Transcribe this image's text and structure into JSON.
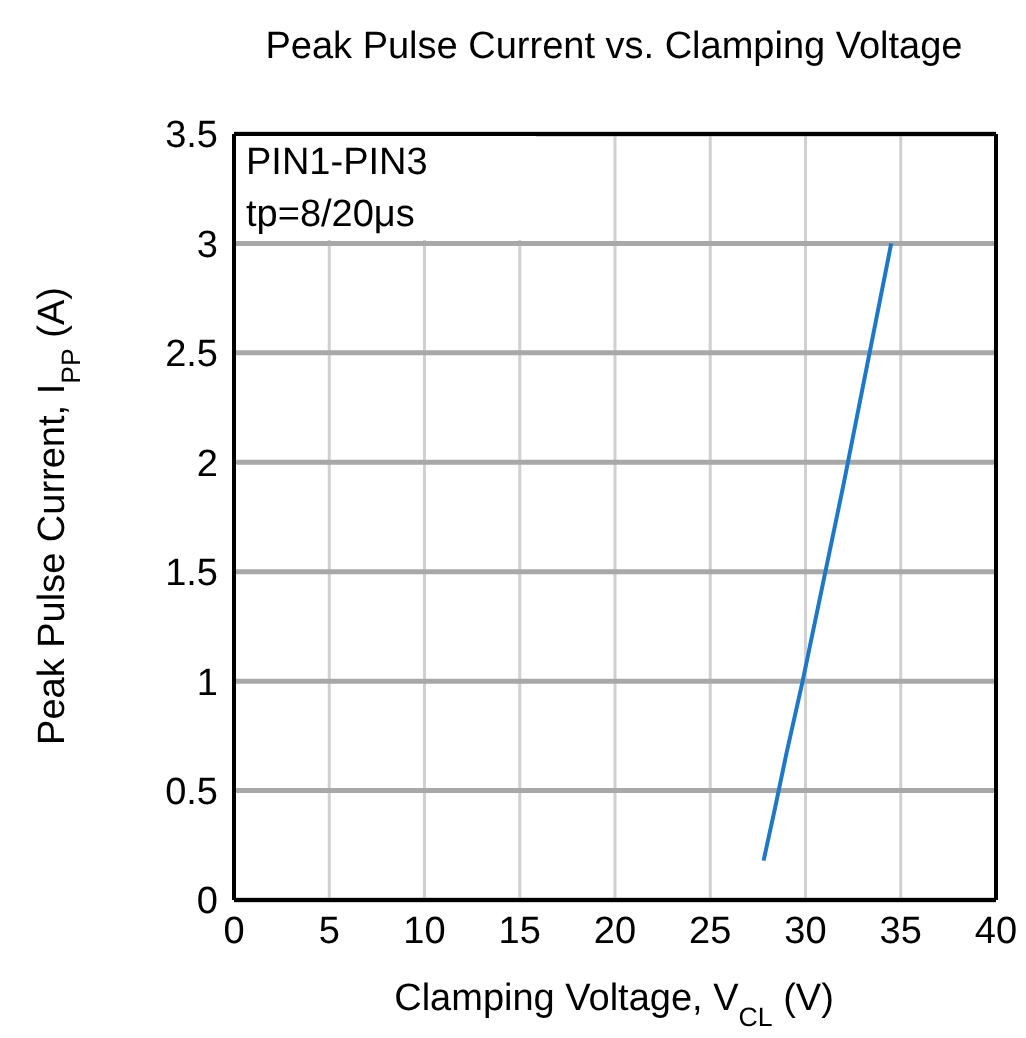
{
  "chart_data": {
    "type": "line",
    "title": "Peak Pulse Current vs. Clamping Voltage",
    "xlabel": "Clamping Voltage, V$_{CL}$ (V)",
    "ylabel": "Peak Pulse Current, I$_{PP}$ (A)",
    "annotations": [
      "PIN1-PIN3",
      "tp=8/20μs"
    ],
    "series": [
      {
        "color": "#1f77c8",
        "x": [
          27.8,
          28.4,
          29.0,
          29.85,
          32.0,
          34.5
        ],
        "values": [
          0.18,
          0.42,
          0.67,
          1.0,
          1.9,
          3.0
        ]
      }
    ],
    "xlim": [
      0,
      40
    ],
    "xticks": [
      0,
      5,
      10,
      15,
      20,
      25,
      30,
      35,
      40
    ],
    "ylim": [
      0,
      3.5
    ],
    "yticks": [
      0,
      0.5,
      1,
      1.5,
      2,
      2.5,
      3,
      3.5
    ],
    "grid": true,
    "marker": "none",
    "line_style": "solid"
  }
}
